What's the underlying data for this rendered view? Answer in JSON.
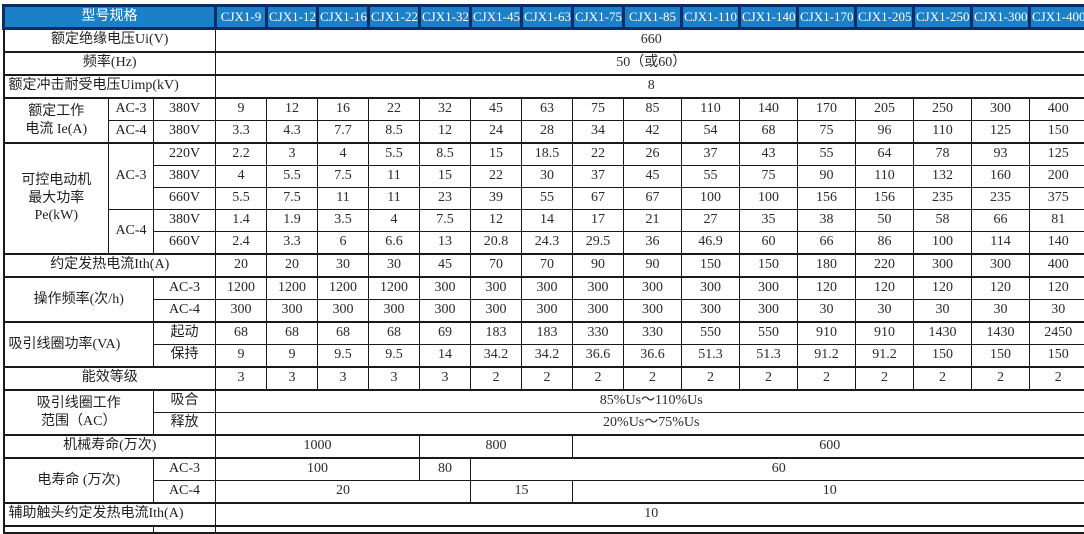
{
  "table": {
    "corner_label": "型号规格",
    "header_bg": "#1a80c8",
    "header_border": "#0a2d68",
    "models": [
      "CJX1-9",
      "CJX1-12",
      "CJX1-16",
      "CJX1-22",
      "CJX1-32",
      "CJX1-45",
      "CJX1-63",
      "CJX1-75",
      "CJX1-85",
      "CJX1-110",
      "CJX1-140",
      "CJX1-170",
      "CJX1-205",
      "CJX1-250",
      "CJX1-300",
      "CJX1-400"
    ],
    "rows": [
      {
        "name": "row-rated-insulation-voltage",
        "thick": true,
        "labels": [
          {
            "t": "额定绝缘电压Ui(V)",
            "cs": 3
          }
        ],
        "cells": [
          {
            "t": "660",
            "s": 16
          }
        ]
      },
      {
        "name": "row-frequency",
        "thick": true,
        "labels": [
          {
            "t": "频率(Hz)",
            "cs": 3
          }
        ],
        "cells": [
          {
            "t": "50（或60）",
            "s": 16
          }
        ]
      },
      {
        "name": "row-impulse-withstand-voltage",
        "thick": true,
        "labels": [
          {
            "t": "额定冲击耐受电压Uimp(kV)",
            "cs": 3,
            "align": "left"
          }
        ],
        "cells": [
          {
            "t": "8",
            "s": 16
          }
        ]
      },
      {
        "name": "row-ie-ac3-380v",
        "thick": true,
        "labels": [
          {
            "t": "额定工作\n电流 Ie(A)",
            "rs": 2,
            "main": true
          },
          {
            "t": "AC-3"
          },
          {
            "t": "380V"
          }
        ],
        "values": [
          "9",
          "12",
          "16",
          "22",
          "32",
          "45",
          "63",
          "75",
          "85",
          "110",
          "140",
          "170",
          "205",
          "250",
          "300",
          "400"
        ]
      },
      {
        "name": "row-ie-ac4-380v",
        "labels": [
          {
            "t": "AC-4"
          },
          {
            "t": "380V"
          }
        ],
        "values": [
          "3.3",
          "4.3",
          "7.7",
          "8.5",
          "12",
          "24",
          "28",
          "34",
          "42",
          "54",
          "68",
          "75",
          "96",
          "110",
          "125",
          "150"
        ]
      },
      {
        "name": "row-pe-ac3-220v",
        "thick": true,
        "labels": [
          {
            "t": "可控电动机\n最大功率\nPe(kW)",
            "rs": 5,
            "main": true
          },
          {
            "t": "AC-3",
            "rs": 3
          },
          {
            "t": "220V"
          }
        ],
        "values": [
          "2.2",
          "3",
          "4",
          "5.5",
          "8.5",
          "15",
          "18.5",
          "22",
          "26",
          "37",
          "43",
          "55",
          "64",
          "78",
          "93",
          "125"
        ]
      },
      {
        "name": "row-pe-ac3-380v",
        "labels": [
          {
            "t": "380V"
          }
        ],
        "values": [
          "4",
          "5.5",
          "7.5",
          "11",
          "15",
          "22",
          "30",
          "37",
          "45",
          "55",
          "75",
          "90",
          "110",
          "132",
          "160",
          "200"
        ]
      },
      {
        "name": "row-pe-ac3-660v",
        "labels": [
          {
            "t": "660V"
          }
        ],
        "values": [
          "5.5",
          "7.5",
          "11",
          "11",
          "23",
          "39",
          "55",
          "67",
          "67",
          "100",
          "100",
          "156",
          "156",
          "235",
          "235",
          "375"
        ]
      },
      {
        "name": "row-pe-ac4-380v",
        "labels": [
          {
            "t": "AC-4",
            "rs": 2
          },
          {
            "t": "380V"
          }
        ],
        "values": [
          "1.4",
          "1.9",
          "3.5",
          "4",
          "7.5",
          "12",
          "14",
          "17",
          "21",
          "27",
          "35",
          "38",
          "50",
          "58",
          "66",
          "81"
        ]
      },
      {
        "name": "row-pe-ac4-660v",
        "labels": [
          {
            "t": "660V"
          }
        ],
        "values": [
          "2.4",
          "3.3",
          "6",
          "6.6",
          "13",
          "20.8",
          "24.3",
          "29.5",
          "36",
          "46.9",
          "60",
          "66",
          "86",
          "100",
          "114",
          "140"
        ]
      },
      {
        "name": "row-conventional-thermal-current",
        "thick": true,
        "labels": [
          {
            "t": "约定发热电流Ith(A)",
            "cs": 3
          }
        ],
        "values": [
          "20",
          "20",
          "30",
          "30",
          "45",
          "70",
          "70",
          "90",
          "90",
          "150",
          "150",
          "180",
          "220",
          "300",
          "300",
          "400"
        ]
      },
      {
        "name": "row-operating-frequency-ac3",
        "thick": true,
        "labels": [
          {
            "t": "操作频率(次/h)",
            "rs": 2,
            "cs": 2,
            "main": true
          },
          {
            "t": "AC-3"
          }
        ],
        "values": [
          "1200",
          "1200",
          "1200",
          "1200",
          "300",
          "300",
          "300",
          "300",
          "300",
          "300",
          "300",
          "120",
          "120",
          "120",
          "120",
          "120"
        ]
      },
      {
        "name": "row-operating-frequency-ac4",
        "labels": [
          {
            "t": "AC-4"
          }
        ],
        "values": [
          "300",
          "300",
          "300",
          "300",
          "300",
          "300",
          "300",
          "300",
          "300",
          "300",
          "300",
          "30",
          "30",
          "30",
          "30",
          "30"
        ]
      },
      {
        "name": "row-coil-power-start",
        "thick": true,
        "labels": [
          {
            "t": "吸引线圈功率(VA)",
            "rs": 2,
            "cs": 2,
            "main": true,
            "align": "left"
          },
          {
            "t": "起动"
          }
        ],
        "values": [
          "68",
          "68",
          "68",
          "68",
          "69",
          "183",
          "183",
          "330",
          "330",
          "550",
          "550",
          "910",
          "910",
          "1430",
          "1430",
          "2450"
        ]
      },
      {
        "name": "row-coil-power-hold",
        "labels": [
          {
            "t": "保持"
          }
        ],
        "values": [
          "9",
          "9",
          "9.5",
          "9.5",
          "14",
          "34.2",
          "34.2",
          "36.6",
          "36.6",
          "51.3",
          "51.3",
          "91.2",
          "91.2",
          "150",
          "150",
          "150"
        ]
      },
      {
        "name": "row-energy-efficiency-grade",
        "thick": true,
        "labels": [
          {
            "t": "能效等级",
            "cs": 3
          }
        ],
        "values": [
          "3",
          "3",
          "3",
          "3",
          "3",
          "2",
          "2",
          "2",
          "2",
          "2",
          "2",
          "2",
          "2",
          "2",
          "2",
          "2"
        ]
      },
      {
        "name": "row-coil-range-pickup",
        "thick": true,
        "labels": [
          {
            "t": "吸引线圈工作\n范围（AC）",
            "rs": 2,
            "cs": 2,
            "main": true
          },
          {
            "t": "吸合"
          }
        ],
        "cells": [
          {
            "t": "85%Us～110%Us",
            "s": 16
          }
        ]
      },
      {
        "name": "row-coil-range-dropout",
        "labels": [
          {
            "t": "释放"
          }
        ],
        "cells": [
          {
            "t": "20%Us～75%Us",
            "s": 16
          }
        ]
      },
      {
        "name": "row-mechanical-life",
        "thick": true,
        "labels": [
          {
            "t": "机械寿命(万次)",
            "cs": 3
          }
        ],
        "cells": [
          {
            "t": "1000",
            "s": 4
          },
          {
            "t": "800",
            "s": 3
          },
          {
            "t": "600",
            "s": 9
          }
        ]
      },
      {
        "name": "row-electrical-life-ac3",
        "thick": true,
        "labels": [
          {
            "t": "电寿命 (万次)",
            "rs": 2,
            "cs": 2,
            "main": true
          },
          {
            "t": "AC-3"
          }
        ],
        "cells": [
          {
            "t": "100",
            "s": 4
          },
          {
            "t": "80",
            "s": 1
          },
          {
            "t": "60",
            "s": 11
          }
        ]
      },
      {
        "name": "row-electrical-life-ac4",
        "labels": [
          {
            "t": "AC-4"
          }
        ],
        "cells": [
          {
            "t": "20",
            "s": 5
          },
          {
            "t": "15",
            "s": 2
          },
          {
            "t": "10",
            "s": 9
          }
        ]
      },
      {
        "name": "row-aux-contact-thermal-current",
        "thick": true,
        "labels": [
          {
            "t": "辅助触头约定发热电流Ith(A)",
            "cs": 3,
            "align": "left"
          }
        ],
        "cells": [
          {
            "t": "10",
            "s": 16
          }
        ]
      },
      {
        "name": "row-cutoff-partial",
        "thick": true,
        "partial": true,
        "labels": [
          {
            "t": "",
            "cs": 2
          },
          {
            "t": ""
          }
        ],
        "cells": [
          {
            "t": "",
            "s": 16
          }
        ]
      }
    ]
  }
}
